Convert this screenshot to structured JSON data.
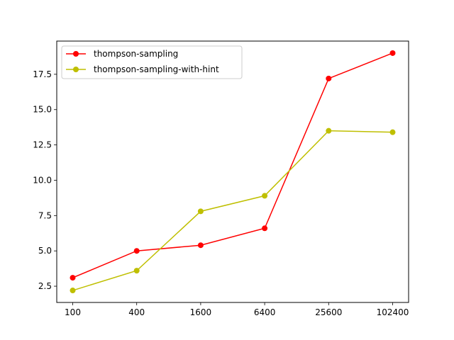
{
  "chart_data": {
    "type": "line",
    "title": "",
    "xlabel": "",
    "ylabel": "",
    "x": [
      "100",
      "400",
      "1600",
      "6400",
      "25600",
      "102400"
    ],
    "y_ticks": [
      "2.5",
      "5.0",
      "7.5",
      "10.0",
      "12.5",
      "15.0",
      "17.5"
    ],
    "ylim": [
      1.35,
      19.85
    ],
    "legend_position": "upper-left",
    "grid": false,
    "series": [
      {
        "name": "thompson-sampling",
        "color": "#ff0000",
        "values": [
          3.1,
          5.0,
          5.4,
          6.6,
          17.2,
          19.0
        ]
      },
      {
        "name": "thompson-sampling-with-hint",
        "color": "#bfbf00",
        "values": [
          2.2,
          3.6,
          7.8,
          8.9,
          13.5,
          13.4
        ]
      }
    ]
  }
}
